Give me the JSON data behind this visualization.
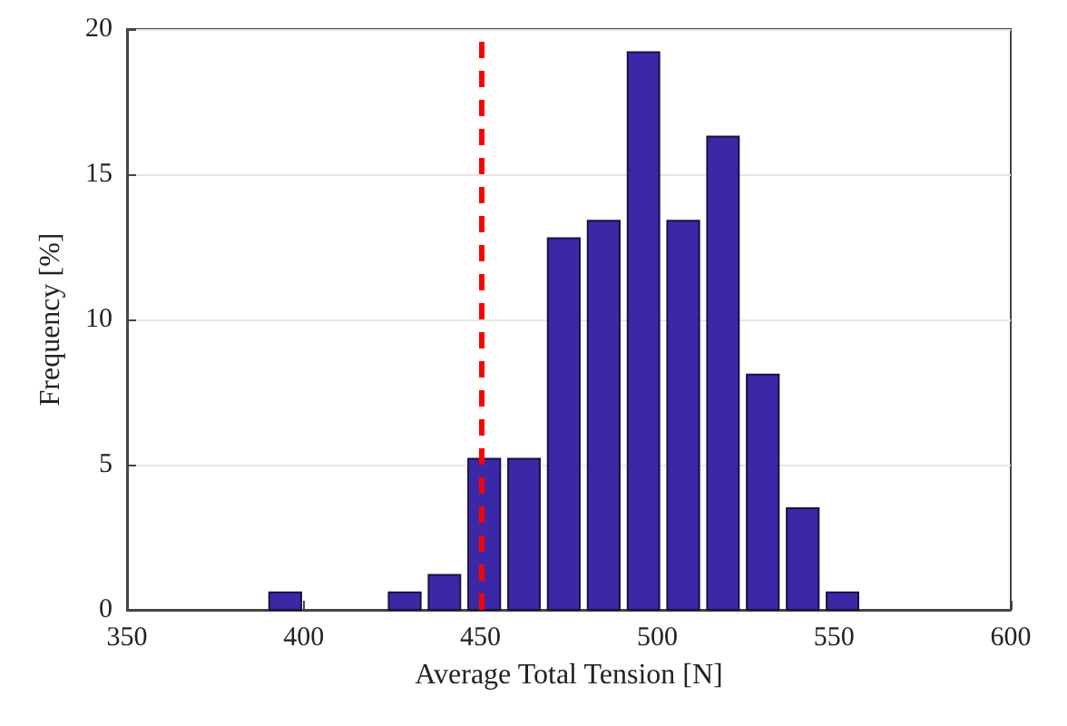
{
  "chart_data": {
    "type": "histogram",
    "xlabel": "Average Total Tension [N]",
    "ylabel": "Frequency [%]",
    "bins": [
      389.1,
      400.4,
      411.6,
      422.9,
      434.2,
      445.4,
      456.7,
      467.9,
      479.2,
      490.5,
      501.7,
      513.0,
      524.2,
      535.5,
      546.8,
      558.0
    ],
    "values": [
      0.6,
      0,
      0,
      0.6,
      1.2,
      5.2,
      5.2,
      12.8,
      13.4,
      19.2,
      13.4,
      16.3,
      8.1,
      3.5,
      0.6
    ],
    "color": "#3b28a6",
    "xlim": [
      350,
      600
    ],
    "xticks": [
      350,
      400,
      450,
      500,
      550,
      600
    ],
    "ylim": [
      0,
      20
    ],
    "yticks": [
      0,
      5,
      10,
      15,
      20
    ],
    "grid": "y",
    "ref_lines": [
      {
        "axis": "x",
        "value": 450,
        "color": "#ff0000",
        "line_style": "dashed"
      }
    ]
  }
}
